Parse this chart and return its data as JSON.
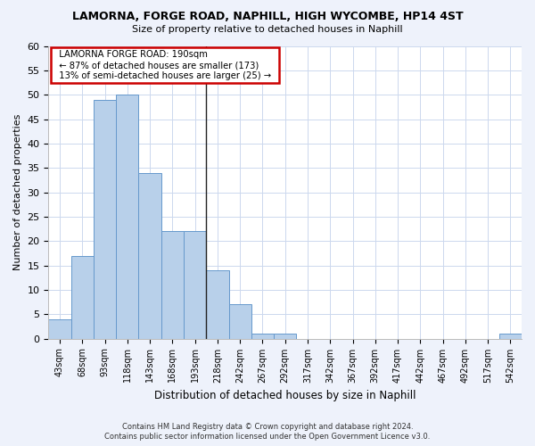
{
  "title": "LAMORNA, FORGE ROAD, NAPHILL, HIGH WYCOMBE, HP14 4ST",
  "subtitle": "Size of property relative to detached houses in Naphill",
  "xlabel": "Distribution of detached houses by size in Naphill",
  "ylabel": "Number of detached properties",
  "bar_labels": [
    "43sqm",
    "68sqm",
    "93sqm",
    "118sqm",
    "143sqm",
    "168sqm",
    "193sqm",
    "218sqm",
    "242sqm",
    "267sqm",
    "292sqm",
    "317sqm",
    "342sqm",
    "367sqm",
    "392sqm",
    "417sqm",
    "442sqm",
    "467sqm",
    "492sqm",
    "517sqm",
    "542sqm"
  ],
  "bar_values": [
    4,
    17,
    49,
    50,
    34,
    22,
    22,
    14,
    7,
    1,
    1,
    0,
    0,
    0,
    0,
    0,
    0,
    0,
    0,
    0,
    1
  ],
  "bar_color": "#b8d0ea",
  "bar_edge_color": "#6699cc",
  "annotation_property": "LAMORNA FORGE ROAD: 190sqm",
  "annotation_line1": "← 87% of detached houses are smaller (173)",
  "annotation_line2": "13% of semi-detached houses are larger (25) →",
  "annotation_box_color": "#ffffff",
  "annotation_box_edge": "#cc0000",
  "vline_x": 6.5,
  "ylim": [
    0,
    60
  ],
  "yticks": [
    0,
    5,
    10,
    15,
    20,
    25,
    30,
    35,
    40,
    45,
    50,
    55,
    60
  ],
  "footer1": "Contains HM Land Registry data © Crown copyright and database right 2024.",
  "footer2": "Contains public sector information licensed under the Open Government Licence v3.0.",
  "bg_color": "#eef2fb",
  "plot_bg_color": "#ffffff",
  "grid_color": "#ccd8ee"
}
